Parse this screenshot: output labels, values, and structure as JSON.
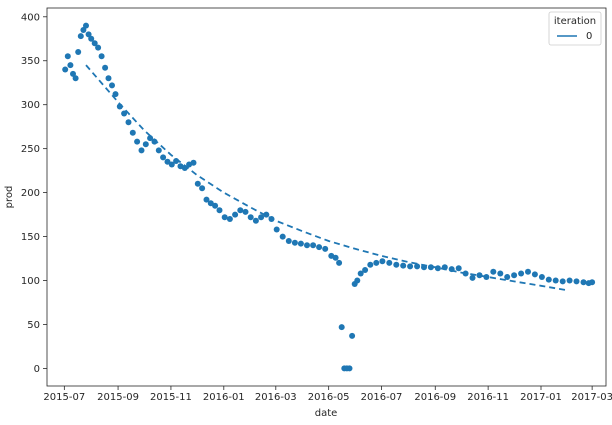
{
  "chart_data": {
    "type": "scatter",
    "xlabel": "date",
    "ylabel": "prod",
    "x_range": [
      "2015-06-11",
      "2017-03-17"
    ],
    "ylim": [
      -20,
      410
    ],
    "x_ticks": [
      "2015-07",
      "2015-09",
      "2015-11",
      "2016-01",
      "2016-03",
      "2016-05",
      "2016-07",
      "2016-09",
      "2016-11",
      "2017-01",
      "2017-03"
    ],
    "y_ticks": [
      0,
      50,
      100,
      150,
      200,
      250,
      300,
      350,
      400
    ],
    "grid": false,
    "legend": {
      "title": "iteration",
      "position": "top-right",
      "entries": [
        "0"
      ]
    },
    "colors": {
      "points": "#1f77b4",
      "fit": "#1f77b4"
    },
    "series": [
      {
        "style": "points",
        "x": [
          "2015-07-02",
          "2015-07-05",
          "2015-07-08",
          "2015-07-11",
          "2015-07-14",
          "2015-07-17",
          "2015-07-20",
          "2015-07-23",
          "2015-07-26",
          "2015-07-29",
          "2015-08-01",
          "2015-08-05",
          "2015-08-09",
          "2015-08-13",
          "2015-08-17",
          "2015-08-21",
          "2015-08-25",
          "2015-08-29",
          "2015-09-03",
          "2015-09-08",
          "2015-09-13",
          "2015-09-18",
          "2015-09-23",
          "2015-09-28",
          "2015-10-03",
          "2015-10-08",
          "2015-10-13",
          "2015-10-18",
          "2015-10-23",
          "2015-10-28",
          "2015-11-02",
          "2015-11-07",
          "2015-11-12",
          "2015-11-17",
          "2015-11-22",
          "2015-11-27",
          "2015-12-02",
          "2015-12-07",
          "2015-12-12",
          "2015-12-17",
          "2015-12-22",
          "2015-12-27",
          "2016-01-02",
          "2016-01-08",
          "2016-01-14",
          "2016-01-20",
          "2016-01-26",
          "2016-02-01",
          "2016-02-07",
          "2016-02-13",
          "2016-02-19",
          "2016-02-25",
          "2016-03-02",
          "2016-03-09",
          "2016-03-16",
          "2016-03-23",
          "2016-03-30",
          "2016-04-06",
          "2016-04-13",
          "2016-04-20",
          "2016-04-27",
          "2016-05-04",
          "2016-05-09",
          "2016-05-13",
          "2016-05-16",
          "2016-05-19",
          "2016-05-22",
          "2016-05-25",
          "2016-05-28",
          "2016-05-31",
          "2016-06-03",
          "2016-06-07",
          "2016-06-12",
          "2016-06-18",
          "2016-06-25",
          "2016-07-02",
          "2016-07-10",
          "2016-07-18",
          "2016-07-26",
          "2016-08-03",
          "2016-08-11",
          "2016-08-19",
          "2016-08-27",
          "2016-09-04",
          "2016-09-12",
          "2016-09-20",
          "2016-09-28",
          "2016-10-06",
          "2016-10-14",
          "2016-10-22",
          "2016-10-30",
          "2016-11-07",
          "2016-11-15",
          "2016-11-23",
          "2016-12-01",
          "2016-12-09",
          "2016-12-17",
          "2016-12-25",
          "2017-01-02",
          "2017-01-10",
          "2017-01-18",
          "2017-01-26",
          "2017-02-03",
          "2017-02-11",
          "2017-02-19",
          "2017-02-25",
          "2017-03-01"
        ],
        "y": [
          340,
          355,
          345,
          335,
          330,
          360,
          378,
          385,
          390,
          380,
          375,
          370,
          365,
          355,
          342,
          330,
          322,
          312,
          298,
          290,
          280,
          268,
          258,
          248,
          255,
          262,
          258,
          248,
          240,
          235,
          232,
          236,
          230,
          228,
          232,
          234,
          210,
          205,
          192,
          188,
          185,
          180,
          172,
          170,
          175,
          180,
          178,
          172,
          168,
          172,
          175,
          170,
          158,
          150,
          145,
          143,
          142,
          140,
          140,
          138,
          136,
          128,
          126,
          120,
          47,
          0,
          0,
          0,
          37,
          96,
          100,
          108,
          112,
          118,
          120,
          122,
          120,
          118,
          117,
          116,
          116,
          115,
          115,
          114,
          115,
          113,
          114,
          108,
          103,
          106,
          104,
          110,
          108,
          104,
          106,
          108,
          110,
          107,
          104,
          101,
          100,
          99,
          100,
          99,
          98,
          97,
          98
        ]
      },
      {
        "style": "dashed-line",
        "x": [
          "2015-07-26",
          "2015-09-01",
          "2015-10-01",
          "2015-11-01",
          "2015-12-01",
          "2016-01-01",
          "2016-02-01",
          "2016-03-01",
          "2016-04-01",
          "2016-05-01",
          "2016-06-01",
          "2016-07-01",
          "2016-08-01",
          "2016-09-01",
          "2016-10-01",
          "2016-11-01",
          "2016-12-01",
          "2017-01-01",
          "2017-01-31"
        ],
        "y": [
          345,
          303,
          271,
          243,
          220,
          200,
          183,
          168,
          156,
          145,
          136,
          128,
          121,
          115,
          109,
          104,
          99,
          94,
          89
        ]
      }
    ]
  }
}
